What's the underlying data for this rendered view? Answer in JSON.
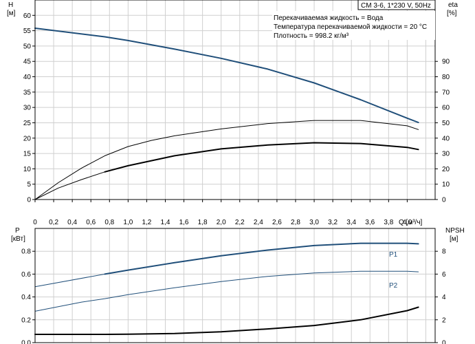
{
  "chart_data": [
    {
      "type": "line",
      "panel": "top",
      "title_box": "CM 3-6, 1*230 V, 50Hz",
      "info_lines": [
        "Перекачиваемая жидкость = Вода",
        "Температура перекачиваемой жидкости = 20 °C",
        "Плотность = 998.2 кг/м³"
      ],
      "xlabel": "Q [м³/ч]",
      "xlim": [
        0,
        4.3
      ],
      "xticks": [
        "0",
        "0,2",
        "0,4",
        "0,6",
        "0,8",
        "1,0",
        "1,2",
        "1,4",
        "1,6",
        "1,8",
        "2,0",
        "2,2",
        "2,4",
        "2,6",
        "2,8",
        "3,0",
        "3,2",
        "3,4",
        "3,6",
        "3,8",
        "4,0"
      ],
      "left_axis": {
        "label_top": "H",
        "label_unit": "[м]",
        "ylim": [
          0,
          65
        ],
        "ticks": [
          "0",
          "5",
          "10",
          "15",
          "20",
          "25",
          "30",
          "35",
          "40",
          "45",
          "50",
          "55",
          "60"
        ]
      },
      "right_axis": {
        "label_top": "eta",
        "label_unit": "[%]",
        "ylim": [
          0,
          130
        ],
        "ticks": [
          "0",
          "10",
          "20",
          "30",
          "40",
          "50",
          "60",
          "70",
          "80",
          "90"
        ]
      },
      "grid": true,
      "series": [
        {
          "axis": "left",
          "color": "#1f4e79",
          "width": 2,
          "x": [
            0,
            0.75,
            1.0,
            1.5,
            2.0,
            2.5,
            3.0,
            3.5,
            4.0,
            4.12
          ],
          "y": [
            55.8,
            53.0,
            51.8,
            49.0,
            46.0,
            42.5,
            38.0,
            32.5,
            26.5,
            25.1
          ]
        },
        {
          "axis": "left",
          "color": "#1f4e79",
          "width": 1,
          "x": [
            0,
            0.75
          ],
          "y": [
            55.8,
            53.0
          ]
        },
        {
          "axis": "right",
          "color": "#000000",
          "width": 1,
          "x": [
            0,
            0.25,
            0.5,
            0.75,
            1.0,
            1.25,
            1.5,
            2.0,
            2.5,
            3.0,
            3.5,
            4.0,
            4.12
          ],
          "y": [
            0,
            11,
            20.5,
            28.5,
            34.5,
            38.5,
            41.5,
            46.0,
            49.5,
            51.5,
            51.5,
            48.0,
            45.6
          ]
        },
        {
          "axis": "right",
          "color": "#000000",
          "width": 2,
          "x": [
            0.75,
            1.0,
            1.5,
            2.0,
            2.5,
            3.0,
            3.5,
            4.0,
            4.12
          ],
          "y": [
            18.0,
            22.0,
            28.5,
            33.0,
            35.5,
            37.0,
            36.5,
            34.0,
            32.6
          ]
        },
        {
          "axis": "right",
          "color": "#000000",
          "width": 1,
          "x": [
            0,
            0.25,
            0.5,
            0.75
          ],
          "y": [
            0,
            7.5,
            13.0,
            18.0
          ]
        }
      ]
    },
    {
      "type": "line",
      "panel": "bottom",
      "left_axis": {
        "label_top": "P",
        "label_unit": "[кВт]",
        "ylim": [
          0,
          1.0
        ],
        "ticks": [
          "0.0",
          "0.2",
          "0.4",
          "0.6",
          "0.8"
        ]
      },
      "right_axis": {
        "label_top": "NPSH",
        "label_unit": "[м]",
        "ylim": [
          0,
          10
        ],
        "ticks": [
          "0",
          "2",
          "4",
          "6",
          "8"
        ]
      },
      "xlim": [
        0,
        4.3
      ],
      "grid": true,
      "series": [
        {
          "name": "P1",
          "axis": "left",
          "color": "#1f4e79",
          "width": 2,
          "x": [
            0.75,
            1.0,
            1.5,
            2.0,
            2.5,
            3.0,
            3.5,
            4.0,
            4.12
          ],
          "y": [
            0.6,
            0.635,
            0.7,
            0.76,
            0.81,
            0.85,
            0.87,
            0.87,
            0.865
          ]
        },
        {
          "axis": "left",
          "color": "#1f4e79",
          "width": 1,
          "x": [
            0,
            0.75
          ],
          "y": [
            0.49,
            0.6
          ]
        },
        {
          "name": "P2",
          "axis": "left",
          "color": "#1f4e79",
          "width": 1,
          "x": [
            0,
            0.25,
            0.5,
            0.75,
            1.0,
            1.5,
            2.0,
            2.5,
            3.0,
            3.5,
            4.0,
            4.12
          ],
          "y": [
            0.275,
            0.315,
            0.355,
            0.385,
            0.42,
            0.48,
            0.535,
            0.58,
            0.61,
            0.625,
            0.625,
            0.62
          ]
        },
        {
          "axis": "right",
          "color": "#000000",
          "width": 2,
          "x": [
            0,
            0.75,
            1.0,
            1.5,
            2.0,
            2.5,
            3.0,
            3.5,
            4.0,
            4.12
          ],
          "y": [
            0.72,
            0.72,
            0.74,
            0.8,
            0.95,
            1.2,
            1.5,
            2.0,
            2.8,
            3.1
          ]
        }
      ]
    }
  ]
}
